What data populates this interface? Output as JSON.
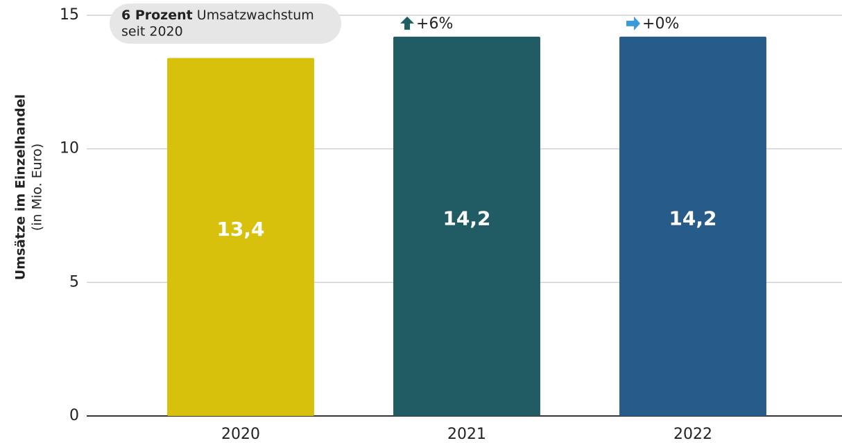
{
  "chart_data": {
    "type": "bar",
    "y_axis_title": "Umsätze im Einzelhandel",
    "y_axis_subtitle": "(in Mio. Euro)",
    "annotation": {
      "bold": "6 Prozent",
      "text": "Umsatzwachstum",
      "line2": "seit 2020"
    },
    "categories": [
      "2020",
      "2021",
      "2022"
    ],
    "values": [
      13.4,
      14.2,
      14.2
    ],
    "value_labels": [
      "13,4",
      "14,2",
      "14,2"
    ],
    "colors": [
      "#d8c10d",
      "#215b63",
      "#275b8a"
    ],
    "changes": [
      null,
      {
        "label": "+6%",
        "direction": "up",
        "color": "#1f5e63"
      },
      {
        "label": "+0%",
        "direction": "right",
        "color": "#3b9ad8"
      }
    ],
    "ylim": [
      0,
      15
    ],
    "yticks": [
      0,
      5,
      10,
      15
    ],
    "grid": true
  }
}
